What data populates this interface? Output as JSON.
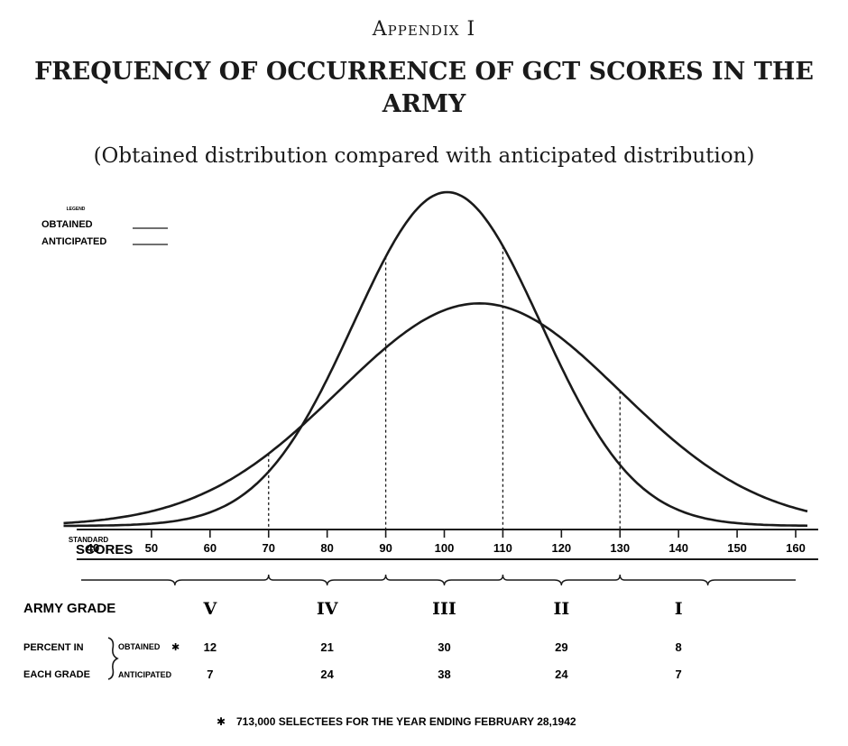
{
  "header": {
    "appendix": "Appendix I",
    "title": "FREQUENCY OF OCCURRENCE OF GCT SCORES IN THE ARMY",
    "subtitle": "(Obtained distribution compared with anticipated distribution)"
  },
  "legend": {
    "heading": "LEGEND",
    "obtained": "OBTAINED",
    "anticipated": "ANTICIPATED"
  },
  "chart_data": {
    "type": "line",
    "xlabel": "STANDARD SCORES",
    "xlim": [
      40,
      160
    ],
    "x_ticks": [
      40,
      50,
      60,
      70,
      80,
      90,
      100,
      110,
      120,
      130,
      140,
      150,
      160
    ],
    "grade_boundaries": [
      70,
      90,
      110,
      130
    ],
    "series": [
      {
        "name": "OBTAINED",
        "mean": 100.5,
        "sd": 16
      },
      {
        "name": "ANTICIPATED",
        "mean": 106,
        "sd": 24
      }
    ],
    "grade_table": {
      "row_label": "ARMY GRADE",
      "group_label": [
        "PERCENT IN",
        "EACH GRADE"
      ],
      "grades": [
        "V",
        "IV",
        "III",
        "II",
        "I"
      ],
      "obtained_label": "OBTAINED",
      "obtained_marker": "✱",
      "anticipated_label": "ANTICIPATED",
      "obtained": [
        "12",
        "21",
        "30",
        "29",
        "8"
      ],
      "anticipated": [
        "7",
        "24",
        "38",
        "24",
        "7"
      ]
    },
    "footnote_marker": "✱",
    "footnote": "713,000 SELECTEES FOR THE YEAR ENDING FEBRUARY 28,1942"
  }
}
